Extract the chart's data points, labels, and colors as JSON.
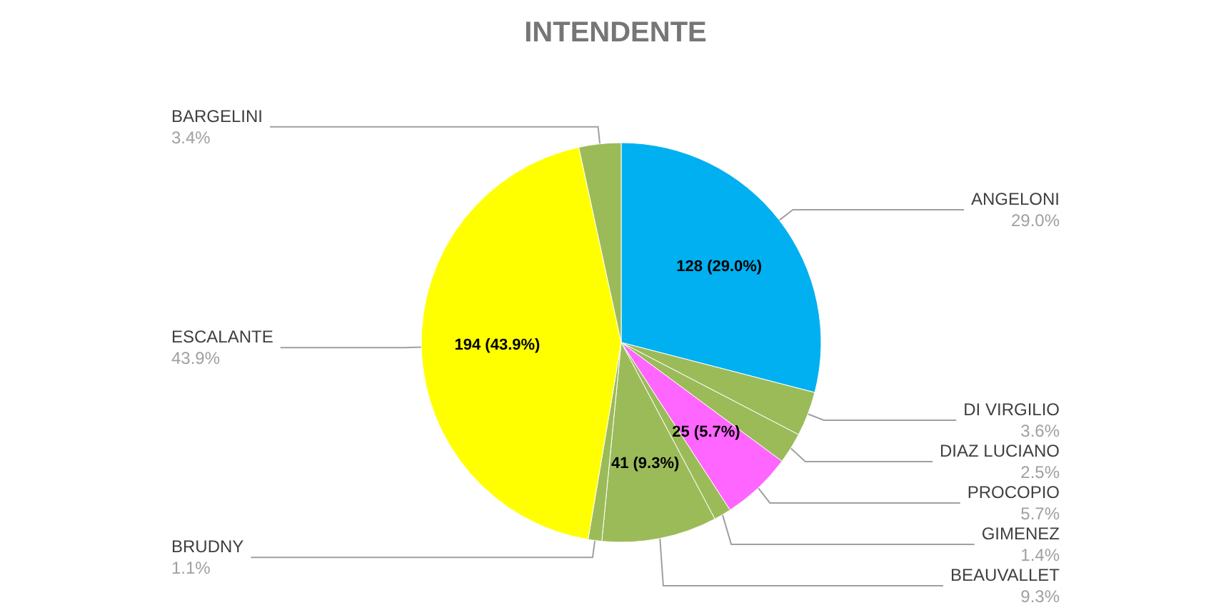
{
  "chart_data": {
    "type": "pie",
    "title": "INTENDENTE",
    "categories": [
      "ANGELONI",
      "DI VIRGILIO",
      "DIAZ LUCIANO",
      "PROCOPIO",
      "GIMENEZ",
      "BEAUVALLET",
      "BRUDNY",
      "ESCALANTE",
      "BARGELINI"
    ],
    "values": [
      29.0,
      3.6,
      2.5,
      5.7,
      1.4,
      9.3,
      1.1,
      43.9,
      3.4
    ],
    "value_labels": [
      "29.0%",
      "3.6%",
      "2.5%",
      "5.7%",
      "1.4%",
      "9.3%",
      "1.1%",
      "43.9%",
      "3.4%"
    ],
    "colors": [
      "#00b0f0",
      "#9bbb59",
      "#9bbb59",
      "#ff66ff",
      "#9bbb59",
      "#9bbb59",
      "#9bbb59",
      "#ffff00",
      "#9bbb59"
    ],
    "annotations": [
      {
        "text": "128 (29.0%)",
        "x": "ANGELONI"
      },
      {
        "text": "25 (5.7%)",
        "x": "PROCOPIO"
      },
      {
        "text": "41 (9.3%)",
        "x": "BEAUVALLET"
      },
      {
        "text": "194 (43.9%)",
        "x": "ESCALANTE"
      }
    ]
  }
}
